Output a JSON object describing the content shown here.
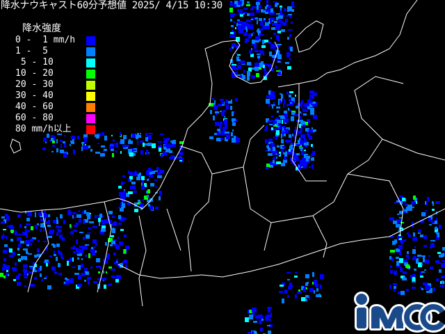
{
  "header": {
    "title": "降水ナウキャスト60分予想値 2025/ 4/15 10:30"
  },
  "legend": {
    "title": "降水強度",
    "items": [
      {
        "label": "0 -  1 mm/h",
        "color": "#0000ff"
      },
      {
        "label": "1 -  5",
        "color": "#0080ff"
      },
      {
        "label": " 5 - 10",
        "color": "#00ffff"
      },
      {
        "label": "10 - 20",
        "color": "#00ff00"
      },
      {
        "label": "20 - 30",
        "color": "#c0ff00"
      },
      {
        "label": "30 - 40",
        "color": "#ffff00"
      },
      {
        "label": "40 - 60",
        "color": "#ff8000"
      },
      {
        "label": "60 - 80",
        "color": "#ff00ff"
      },
      {
        "label": "80 mm/h以上",
        "color": "#ff0000"
      }
    ]
  },
  "logo": {
    "text": "iMOC",
    "color": "#1a4a8a"
  },
  "map": {
    "background": "#000000",
    "boundary_color": "#ffffff"
  }
}
